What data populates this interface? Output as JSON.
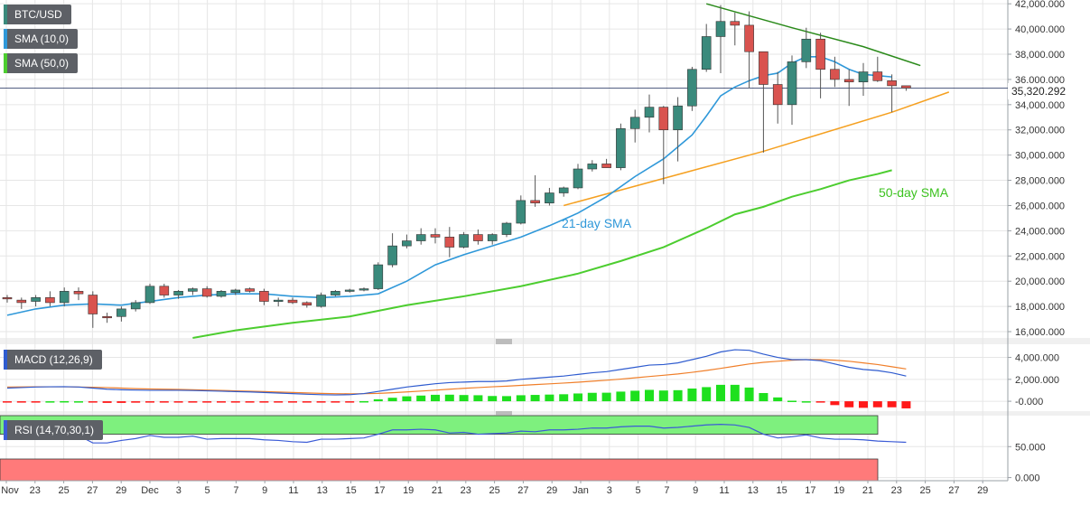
{
  "legends": {
    "price": "BTC/USD",
    "sma10": "SMA (10,0)",
    "sma50": "SMA (50,0)",
    "macd": "MACD (12,26,9)",
    "rsi": "RSI (14,70,30,1)"
  },
  "colors": {
    "bull": "#3a8a7c",
    "bear": "#d9534f",
    "sma10": "#2f98d9",
    "sma50": "#4ccd2f",
    "macd_line": "#2e5bcf",
    "signal_line": "#f07f2a",
    "hist_pos": "#1ee01e",
    "hist_neg": "#ff1a1a",
    "rsi_line": "#3b5bd6",
    "rsi_ob": "#7ef07e",
    "rsi_os": "#ff7a7a",
    "trend_up": "#f5a020",
    "trend_down": "#2a8a1a"
  },
  "current_price": "35,320.292",
  "annotations": {
    "sma21": "21-day SMA",
    "sma50": "50-day SMA"
  },
  "x_labels": [
    "Nov",
    "23",
    "25",
    "27",
    "29",
    "Dec",
    "3",
    "5",
    "7",
    "9",
    "11",
    "13",
    "15",
    "17",
    "19",
    "21",
    "23",
    "25",
    "27",
    "29",
    "Jan",
    "3",
    "5",
    "7",
    "9",
    "11",
    "13",
    "15",
    "17",
    "19",
    "21",
    "23",
    "25",
    "27",
    "29"
  ],
  "chart_data": [
    {
      "type": "candlestick",
      "ylim": [
        15500,
        42300
      ],
      "y_ticks": [
        "16,000.000",
        "18,000.000",
        "20,000.000",
        "22,000.000",
        "24,000.000",
        "26,000.000",
        "28,000.000",
        "30,000.000",
        "32,000.000",
        "34,000.000",
        "36,000.000",
        "38,000.000",
        "40,000.000",
        "42,000.000"
      ],
      "candles": [
        {
          "o": 18700,
          "h": 18900,
          "l": 18300,
          "c": 18600
        },
        {
          "o": 18500,
          "h": 18700,
          "l": 17800,
          "c": 18300
        },
        {
          "o": 18400,
          "h": 18900,
          "l": 18000,
          "c": 18700
        },
        {
          "o": 18700,
          "h": 19200,
          "l": 18000,
          "c": 18300
        },
        {
          "o": 18300,
          "h": 19500,
          "l": 18000,
          "c": 19200
        },
        {
          "o": 19200,
          "h": 19500,
          "l": 18500,
          "c": 19000
        },
        {
          "o": 18900,
          "h": 19200,
          "l": 16300,
          "c": 17400
        },
        {
          "o": 17200,
          "h": 17500,
          "l": 16700,
          "c": 17100
        },
        {
          "o": 17200,
          "h": 18000,
          "l": 16800,
          "c": 17800
        },
        {
          "o": 17800,
          "h": 18500,
          "l": 17600,
          "c": 18300
        },
        {
          "o": 18300,
          "h": 19800,
          "l": 18200,
          "c": 19600
        },
        {
          "o": 19600,
          "h": 19800,
          "l": 18700,
          "c": 18900
        },
        {
          "o": 18900,
          "h": 19300,
          "l": 18600,
          "c": 19200
        },
        {
          "o": 19200,
          "h": 19500,
          "l": 18900,
          "c": 19400
        },
        {
          "o": 19400,
          "h": 19600,
          "l": 18700,
          "c": 18800
        },
        {
          "o": 18800,
          "h": 19300,
          "l": 18700,
          "c": 19200
        },
        {
          "o": 19100,
          "h": 19400,
          "l": 18900,
          "c": 19300
        },
        {
          "o": 19400,
          "h": 19500,
          "l": 19100,
          "c": 19200
        },
        {
          "o": 19200,
          "h": 19400,
          "l": 18100,
          "c": 18400
        },
        {
          "o": 18400,
          "h": 18700,
          "l": 18000,
          "c": 18500
        },
        {
          "o": 18500,
          "h": 18700,
          "l": 18200,
          "c": 18300
        },
        {
          "o": 18300,
          "h": 18400,
          "l": 17900,
          "c": 18100
        },
        {
          "o": 18000,
          "h": 19100,
          "l": 17900,
          "c": 18900
        },
        {
          "o": 18900,
          "h": 19300,
          "l": 18800,
          "c": 19200
        },
        {
          "o": 19200,
          "h": 19400,
          "l": 19100,
          "c": 19300
        },
        {
          "o": 19300,
          "h": 19500,
          "l": 19200,
          "c": 19400
        },
        {
          "o": 19400,
          "h": 21500,
          "l": 19300,
          "c": 21300
        },
        {
          "o": 21300,
          "h": 23800,
          "l": 21100,
          "c": 22800
        },
        {
          "o": 22800,
          "h": 23700,
          "l": 22600,
          "c": 23200
        },
        {
          "o": 23200,
          "h": 24200,
          "l": 22900,
          "c": 23700
        },
        {
          "o": 23700,
          "h": 24200,
          "l": 23000,
          "c": 23500
        },
        {
          "o": 23500,
          "h": 24300,
          "l": 21900,
          "c": 22700
        },
        {
          "o": 22700,
          "h": 23900,
          "l": 22600,
          "c": 23700
        },
        {
          "o": 23700,
          "h": 24100,
          "l": 22900,
          "c": 23200
        },
        {
          "o": 23200,
          "h": 23800,
          "l": 22900,
          "c": 23700
        },
        {
          "o": 23700,
          "h": 24700,
          "l": 23500,
          "c": 24600
        },
        {
          "o": 24600,
          "h": 26800,
          "l": 24500,
          "c": 26400
        },
        {
          "o": 26400,
          "h": 28400,
          "l": 25900,
          "c": 26200
        },
        {
          "o": 26200,
          "h": 27400,
          "l": 26000,
          "c": 27000
        },
        {
          "o": 27000,
          "h": 27500,
          "l": 26700,
          "c": 27400
        },
        {
          "o": 27400,
          "h": 29300,
          "l": 27300,
          "c": 28900
        },
        {
          "o": 28900,
          "h": 29600,
          "l": 28700,
          "c": 29300
        },
        {
          "o": 29300,
          "h": 29700,
          "l": 29000,
          "c": 29000
        },
        {
          "o": 29000,
          "h": 32500,
          "l": 28800,
          "c": 32100
        },
        {
          "o": 32100,
          "h": 33600,
          "l": 31000,
          "c": 33000
        },
        {
          "o": 33000,
          "h": 34800,
          "l": 31800,
          "c": 33800
        },
        {
          "o": 33800,
          "h": 33900,
          "l": 27700,
          "c": 32000
        },
        {
          "o": 32000,
          "h": 34600,
          "l": 29500,
          "c": 33900
        },
        {
          "o": 33900,
          "h": 37000,
          "l": 33500,
          "c": 36800
        },
        {
          "o": 36800,
          "h": 40400,
          "l": 36600,
          "c": 39400
        },
        {
          "o": 39400,
          "h": 41900,
          "l": 36500,
          "c": 40600
        },
        {
          "o": 40600,
          "h": 41300,
          "l": 38700,
          "c": 40300
        },
        {
          "o": 40300,
          "h": 41400,
          "l": 35300,
          "c": 38200
        },
        {
          "o": 38200,
          "h": 38200,
          "l": 30200,
          "c": 35600
        },
        {
          "o": 35600,
          "h": 36600,
          "l": 32500,
          "c": 34000
        },
        {
          "o": 34000,
          "h": 37900,
          "l": 32400,
          "c": 37400
        },
        {
          "o": 37400,
          "h": 40100,
          "l": 36900,
          "c": 39200
        },
        {
          "o": 39200,
          "h": 39700,
          "l": 34500,
          "c": 36800
        },
        {
          "o": 36800,
          "h": 37800,
          "l": 35400,
          "c": 36000
        },
        {
          "o": 36000,
          "h": 36800,
          "l": 33900,
          "c": 35800
        },
        {
          "o": 35800,
          "h": 37300,
          "l": 34700,
          "c": 36600
        },
        {
          "o": 36600,
          "h": 37800,
          "l": 35800,
          "c": 35900
        },
        {
          "o": 35900,
          "h": 36400,
          "l": 33400,
          "c": 35500
        },
        {
          "o": 35500,
          "h": 35500,
          "l": 35100,
          "c": 35320
        }
      ],
      "sma10": [
        [
          0,
          17300
        ],
        [
          2,
          17800
        ],
        [
          4,
          18100
        ],
        [
          6,
          18200
        ],
        [
          8,
          18100
        ],
        [
          10,
          18400
        ],
        [
          12,
          18700
        ],
        [
          14,
          18900
        ],
        [
          16,
          19000
        ],
        [
          18,
          19000
        ],
        [
          20,
          18800
        ],
        [
          22,
          18700
        ],
        [
          24,
          18800
        ],
        [
          26,
          19000
        ],
        [
          28,
          20000
        ],
        [
          30,
          21300
        ],
        [
          32,
          22100
        ],
        [
          34,
          22800
        ],
        [
          36,
          23500
        ],
        [
          38,
          24400
        ],
        [
          40,
          25400
        ],
        [
          42,
          26700
        ],
        [
          44,
          28300
        ],
        [
          46,
          29700
        ],
        [
          48,
          31600
        ],
        [
          49,
          33100
        ],
        [
          50,
          34700
        ],
        [
          51,
          35400
        ],
        [
          52,
          35900
        ],
        [
          53,
          36300
        ],
        [
          54,
          36500
        ],
        [
          55,
          37300
        ],
        [
          56,
          37800
        ],
        [
          57,
          37800
        ],
        [
          58,
          37400
        ],
        [
          59,
          36800
        ],
        [
          60,
          36400
        ],
        [
          61,
          36300
        ],
        [
          62,
          36200
        ]
      ],
      "sma50": [
        [
          13,
          15500
        ],
        [
          16,
          16100
        ],
        [
          20,
          16700
        ],
        [
          24,
          17200
        ],
        [
          28,
          18100
        ],
        [
          32,
          18800
        ],
        [
          36,
          19600
        ],
        [
          40,
          20600
        ],
        [
          43,
          21600
        ],
        [
          46,
          22700
        ],
        [
          49,
          24200
        ],
        [
          51,
          25300
        ],
        [
          53,
          25900
        ],
        [
          55,
          26700
        ],
        [
          57,
          27300
        ],
        [
          59,
          28000
        ],
        [
          61,
          28500
        ],
        [
          62,
          28800
        ]
      ],
      "sma21_line": [
        [
          39,
          26000
        ],
        [
          44,
          27700
        ],
        [
          48,
          29000
        ],
        [
          53,
          30300
        ],
        [
          56,
          31000
        ],
        [
          60,
          32500
        ],
        [
          62,
          33700
        ],
        [
          66,
          35000
        ]
      ],
      "resistance_line": [
        [
          49,
          42000
        ],
        [
          55,
          40100
        ],
        [
          60,
          38600
        ],
        [
          64,
          37100
        ]
      ],
      "support_line": [
        [
          39,
          26000
        ],
        [
          53,
          30300
        ],
        [
          62,
          33400
        ],
        [
          66,
          35000
        ]
      ]
    },
    {
      "type": "macd",
      "ylim": [
        -900,
        5200
      ],
      "y_ticks": [
        "-0.000",
        "2,000.000",
        "4,000.000"
      ],
      "macd": [
        1200,
        1250,
        1300,
        1320,
        1330,
        1300,
        1200,
        1100,
        1050,
        1020,
        1000,
        1000,
        1000,
        980,
        950,
        920,
        880,
        850,
        800,
        750,
        700,
        640,
        600,
        580,
        600,
        700,
        900,
        1100,
        1300,
        1450,
        1600,
        1700,
        1750,
        1800,
        1800,
        1850,
        2000,
        2100,
        2200,
        2300,
        2450,
        2600,
        2700,
        2900,
        3100,
        3300,
        3350,
        3500,
        3800,
        4100,
        4500,
        4700,
        4650,
        4300,
        4000,
        3800,
        3800,
        3700,
        3400,
        3100,
        2900,
        2800,
        2600,
        2300
      ],
      "signal": [
        1300,
        1310,
        1320,
        1320,
        1320,
        1300,
        1280,
        1250,
        1200,
        1150,
        1120,
        1100,
        1080,
        1050,
        1020,
        990,
        950,
        920,
        880,
        840,
        800,
        760,
        720,
        690,
        680,
        690,
        720,
        780,
        850,
        930,
        1010,
        1100,
        1180,
        1250,
        1320,
        1380,
        1450,
        1520,
        1590,
        1660,
        1740,
        1830,
        1920,
        2020,
        2140,
        2260,
        2370,
        2490,
        2640,
        2810,
        3000,
        3200,
        3400,
        3550,
        3650,
        3750,
        3800,
        3800,
        3750,
        3650,
        3500,
        3350,
        3150,
        2950
      ],
      "hist": [
        -120,
        -80,
        -40,
        0,
        10,
        0,
        -80,
        -150,
        -150,
        -130,
        -120,
        -100,
        -80,
        -70,
        -70,
        -70,
        -70,
        -70,
        -80,
        -90,
        -100,
        -120,
        -120,
        -110,
        -80,
        10,
        180,
        320,
        450,
        520,
        590,
        600,
        570,
        550,
        480,
        470,
        550,
        580,
        610,
        640,
        710,
        770,
        780,
        880,
        960,
        1040,
        980,
        1010,
        1160,
        1290,
        1500,
        1500,
        1250,
        750,
        350,
        50,
        0,
        -100,
        -350,
        -550,
        -600,
        -550,
        -550,
        -650
      ]
    },
    {
      "type": "rsi",
      "ylim": [
        -5,
        100
      ],
      "y_ticks": [
        "0.000",
        "50.000"
      ],
      "overbought": 70,
      "oversold": 30,
      "values": [
        70,
        68,
        67,
        67,
        67,
        68,
        56,
        56,
        60,
        63,
        68,
        65,
        65,
        67,
        62,
        63,
        63,
        63,
        61,
        60,
        58,
        57,
        62,
        62,
        63,
        64,
        70,
        77,
        77,
        78,
        77,
        72,
        73,
        70,
        71,
        72,
        75,
        74,
        77,
        77,
        78,
        80,
        80,
        82,
        83,
        83,
        80,
        81,
        83,
        85,
        86,
        85,
        81,
        70,
        64,
        66,
        69,
        64,
        62,
        62,
        61,
        59,
        58,
        57
      ]
    }
  ]
}
